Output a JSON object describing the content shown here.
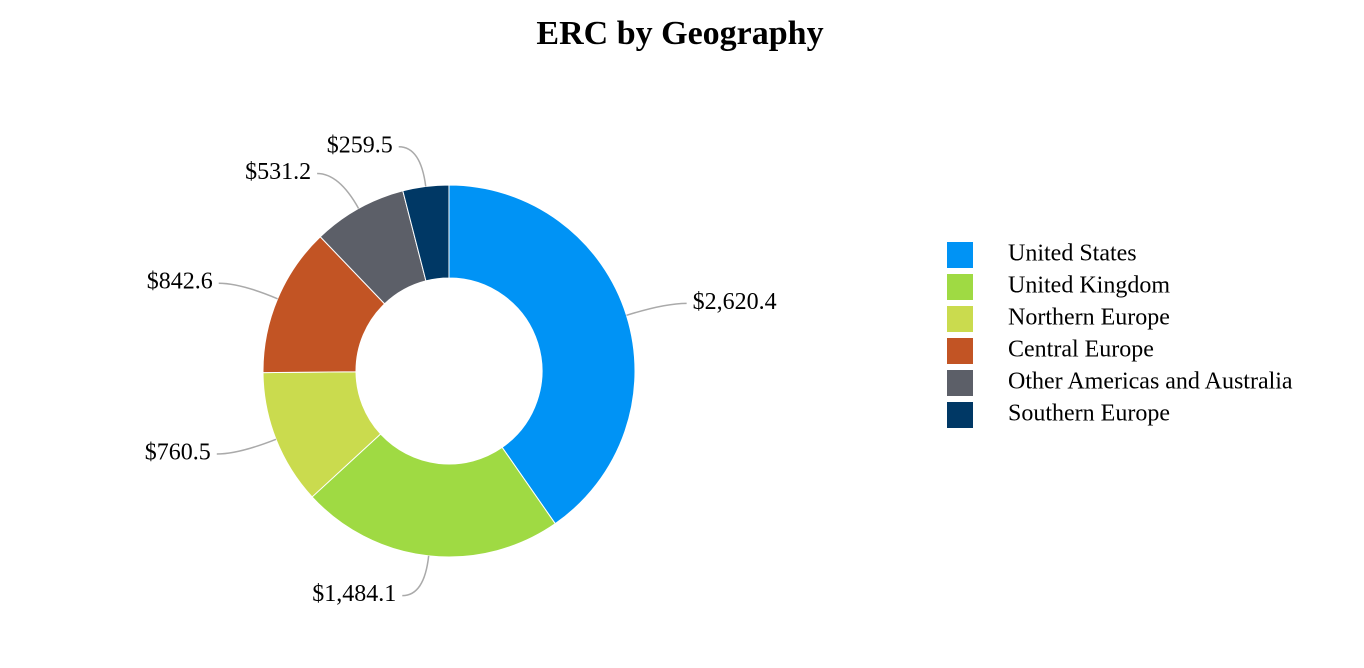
{
  "chart_data": {
    "type": "donut",
    "title": "ERC by Geography",
    "categories": [
      "United States",
      "United Kingdom",
      "Northern Europe",
      "Central Europe",
      "Other Americas and Australia",
      "Southern Europe"
    ],
    "values": [
      2620.4,
      1484.1,
      760.5,
      842.6,
      531.2,
      259.5
    ],
    "value_labels": [
      "$2,620.4",
      "$1,484.1",
      "$760.5",
      "$842.6",
      "$531.2",
      "$259.5"
    ],
    "colors": [
      "#0093f5",
      "#9fda43",
      "#cadb4e",
      "#c25424",
      "#5c5f68",
      "#003865"
    ],
    "legend": "right"
  }
}
